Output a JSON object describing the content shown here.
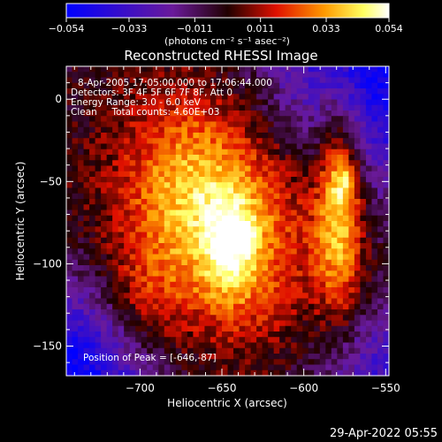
{
  "chart_data": {
    "type": "heatmap",
    "title": "Reconstructed RHESSI Image",
    "xlabel": "Heliocentric X (arcsec)",
    "ylabel": "Heliocentric Y (arcsec)",
    "xlim": [
      -745,
      -548
    ],
    "ylim": [
      -168,
      20
    ],
    "x_ticks": [
      -700,
      -650,
      -600,
      -550
    ],
    "x_tick_labels": [
      "−700",
      "−650",
      "−600",
      "−550"
    ],
    "y_ticks": [
      0,
      -50,
      -100,
      -150
    ],
    "y_tick_labels": [
      "0",
      "−50",
      "−100",
      "−150"
    ],
    "colorbar": {
      "range": [
        -0.054,
        0.054
      ],
      "ticks": [
        -0.054,
        -0.033,
        -0.011,
        0.011,
        0.033,
        0.054
      ],
      "tick_labels": [
        "−0.054",
        "−0.033",
        "−0.011",
        "0.011",
        "0.033",
        "0.054"
      ],
      "unit_label": "(photons cm⁻² s⁻¹ asec⁻²)"
    },
    "annotations": [
      "8-Apr-2005 17:05:00.000 to 17:06:44.000",
      "Detectors: 3F 4F 5F 6F 7F 8F, Att 0",
      "Energy Range: 3.0 - 6.0 keV",
      "Clean     Total counts: 4.60E+03"
    ],
    "peak_label": "Position of Peak = [-646,-87]",
    "peak": [
      -646,
      -87
    ],
    "sources": [
      {
        "x": -648,
        "y": -68,
        "sx": 48,
        "sy": 58,
        "amp": 0.04
      },
      {
        "x": -644,
        "y": -90,
        "sx": 12,
        "sy": 22,
        "amp": 0.03
      },
      {
        "x": -672,
        "y": -50,
        "sx": 22,
        "sy": 36,
        "amp": 0.012
      },
      {
        "x": -578,
        "y": -62,
        "sx": 10,
        "sy": 48,
        "amp": 0.042
      },
      {
        "x": -575,
        "y": -50,
        "sx": 6,
        "sy": 9,
        "amp": 0.018
      },
      {
        "x": -700,
        "y": -125,
        "sx": 18,
        "sy": 24,
        "amp": 0.015
      }
    ],
    "background": -0.004,
    "corner_dips": [
      {
        "x": -745,
        "y": -168,
        "s": 40,
        "amp": -0.05
      },
      {
        "x": -555,
        "y": 20,
        "s": 55,
        "amp": -0.05
      },
      {
        "x": -550,
        "y": -168,
        "s": 30,
        "amp": -0.03
      }
    ]
  },
  "timestamp": "29-Apr-2022 05:55"
}
